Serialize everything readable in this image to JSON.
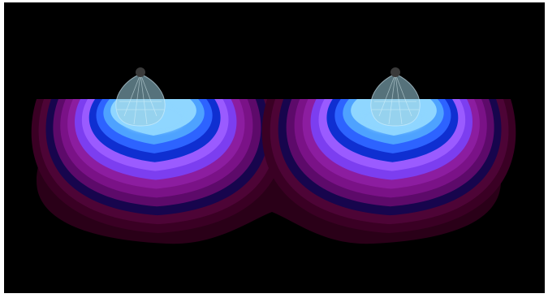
{
  "scene": {
    "background": "#000000",
    "frame_color": "#ffffff",
    "fixtures": [
      {
        "name": "left-light-fixture",
        "icon": "pendant-lamp-icon"
      },
      {
        "name": "right-light-fixture",
        "icon": "pendant-lamp-icon"
      }
    ],
    "contour_colors": [
      "#2a0018",
      "#3a0024",
      "#4d0436",
      "#17054d",
      "#5d0a6a",
      "#7a1287",
      "#8c1da0",
      "#7c3ef0",
      "#9a5bff",
      "#0f2fd1",
      "#2d63ff",
      "#4ea2ff",
      "#8fd6ff"
    ],
    "fixture_color": "#9ccfe0",
    "fixture_cap_color": "#3a3a3a"
  }
}
